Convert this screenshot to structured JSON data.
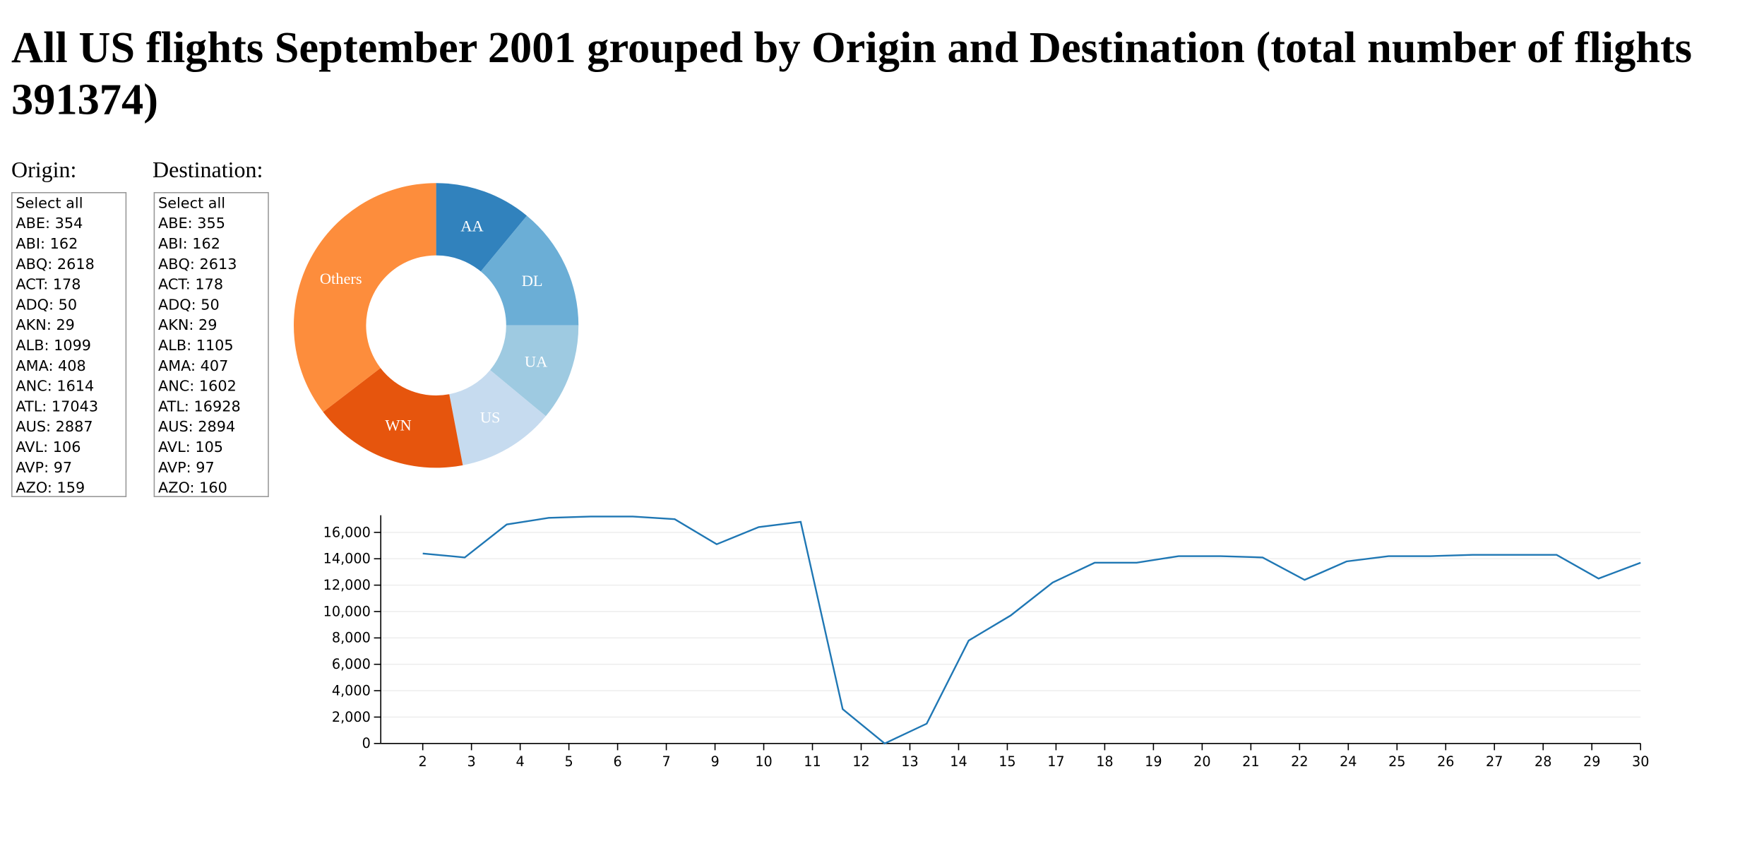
{
  "header": {
    "title": "All US flights September 2001 grouped by Origin and Destination (total number of flights 391374)"
  },
  "origin": {
    "label": "Origin:",
    "items": [
      "Select all",
      "ABE: 354",
      "ABI: 162",
      "ABQ: 2618",
      "ACT: 178",
      "ADQ: 50",
      "AKN: 29",
      "ALB: 1099",
      "AMA: 408",
      "ANC: 1614",
      "ATL: 17043",
      "AUS: 2887",
      "AVL: 106",
      "AVP: 97",
      "AZO: 159"
    ]
  },
  "destination": {
    "label": "Destination:",
    "items": [
      "Select all",
      "ABE: 355",
      "ABI: 162",
      "ABQ: 2613",
      "ACT: 178",
      "ADQ: 50",
      "AKN: 29",
      "ALB: 1105",
      "AMA: 407",
      "ANC: 1602",
      "ATL: 16928",
      "AUS: 2894",
      "AVL: 105",
      "AVP: 97",
      "AZO: 160"
    ]
  },
  "chart_data": [
    {
      "type": "donut",
      "categories": [
        "AA",
        "DL",
        "UA",
        "US",
        "WN",
        "Others"
      ],
      "values": [
        11,
        14,
        11,
        11,
        17.6,
        35.4
      ],
      "colors": [
        "#3182bd",
        "#6baed6",
        "#9ecae1",
        "#c6dbef",
        "#e6550d",
        "#fd8d3c"
      ]
    },
    {
      "type": "line",
      "color": "#1f77b4",
      "grid": true,
      "x": [
        1,
        2,
        3,
        4,
        5,
        6,
        7,
        8,
        9,
        10,
        11,
        12,
        13,
        14,
        15,
        16,
        17,
        18,
        19,
        20,
        21,
        22,
        23,
        24,
        25,
        26,
        27,
        28,
        29,
        30
      ],
      "values": [
        14400,
        14100,
        16600,
        17100,
        17200,
        17200,
        17000,
        15100,
        16400,
        16800,
        2600,
        0,
        1500,
        7800,
        9700,
        12200,
        13700,
        13700,
        14200,
        14200,
        14100,
        12400,
        13800,
        14200,
        14200,
        14300,
        14300,
        14300,
        12500,
        13700
      ],
      "xlim": [
        0,
        30
      ],
      "xticks": [
        {
          "value": 1,
          "label": "2"
        },
        {
          "value": 2.16,
          "label": "3"
        },
        {
          "value": 3.32,
          "label": "4"
        },
        {
          "value": 4.48,
          "label": "5"
        },
        {
          "value": 5.64,
          "label": "6"
        },
        {
          "value": 6.8,
          "label": "7"
        },
        {
          "value": 7.96,
          "label": "9"
        },
        {
          "value": 9.12,
          "label": "10"
        },
        {
          "value": 10.28,
          "label": "11"
        },
        {
          "value": 11.44,
          "label": "12"
        },
        {
          "value": 12.6,
          "label": "13"
        },
        {
          "value": 13.76,
          "label": "14"
        },
        {
          "value": 14.92,
          "label": "15"
        },
        {
          "value": 16.08,
          "label": "17"
        },
        {
          "value": 17.24,
          "label": "18"
        },
        {
          "value": 18.4,
          "label": "19"
        },
        {
          "value": 19.56,
          "label": "20"
        },
        {
          "value": 20.72,
          "label": "21"
        },
        {
          "value": 21.88,
          "label": "22"
        },
        {
          "value": 23.04,
          "label": "24"
        },
        {
          "value": 24.2,
          "label": "25"
        },
        {
          "value": 25.36,
          "label": "26"
        },
        {
          "value": 26.52,
          "label": "27"
        },
        {
          "value": 27.68,
          "label": "28"
        },
        {
          "value": 28.84,
          "label": "29"
        },
        {
          "value": 30,
          "label": "30"
        }
      ],
      "ylim": [
        0,
        17300
      ],
      "yticks": [
        0,
        {
          "value": 2000,
          "label": "2,000"
        },
        {
          "value": 4000,
          "label": "4,000"
        },
        {
          "value": 6000,
          "label": "6,000"
        },
        {
          "value": 8000,
          "label": "8,000"
        },
        {
          "value": 10000,
          "label": "10,000"
        },
        {
          "value": 12000,
          "label": "12,000"
        },
        {
          "value": 14000,
          "label": "14,000"
        },
        {
          "value": 16000,
          "label": "16,000"
        }
      ]
    }
  ]
}
